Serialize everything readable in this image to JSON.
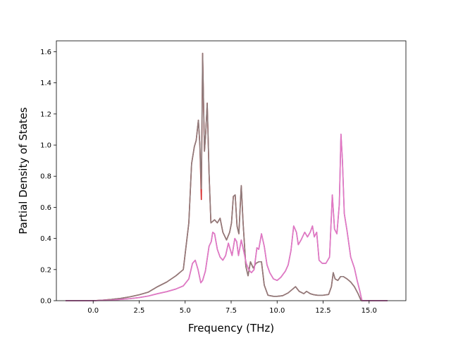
{
  "chart_data": {
    "type": "line",
    "title": "",
    "xlabel": "Frequency (THz)",
    "ylabel": "Partial Density of States",
    "xlim": [
      -2.0,
      17.0
    ],
    "ylim": [
      0.0,
      1.67
    ],
    "grid": false,
    "legend": "none",
    "x_ticks": [
      0.0,
      2.5,
      5.0,
      7.5,
      10.0,
      12.5,
      15.0
    ],
    "x_tick_labels": [
      "0.0",
      "2.5",
      "5.0",
      "7.5",
      "10.0",
      "12.5",
      "15.0"
    ],
    "y_ticks": [
      0.0,
      0.2,
      0.4,
      0.6,
      0.8,
      1.0,
      1.2,
      1.4,
      1.6
    ],
    "y_tick_labels": [
      "0.0",
      "0.2",
      "0.4",
      "0.6",
      "0.8",
      "1.0",
      "1.2",
      "1.4",
      "1.6"
    ],
    "series": [
      {
        "color": "#d62728",
        "width": 1.6,
        "points": [
          [
            -1.5,
            0
          ],
          [
            0.0,
            0
          ],
          [
            0.5,
            0.003
          ],
          [
            1.0,
            0.008
          ],
          [
            1.5,
            0.015
          ],
          [
            2.0,
            0.025
          ],
          [
            2.5,
            0.038
          ],
          [
            3.0,
            0.055
          ],
          [
            3.5,
            0.09
          ],
          [
            4.0,
            0.12
          ],
          [
            4.5,
            0.16
          ],
          [
            4.9,
            0.2
          ],
          [
            5.2,
            0.5
          ],
          [
            5.35,
            0.88
          ],
          [
            5.5,
            0.99
          ],
          [
            5.6,
            1.03
          ],
          [
            5.72,
            1.16
          ],
          [
            5.8,
            1.0
          ],
          [
            5.88,
            0.65
          ],
          [
            5.95,
            1.59
          ],
          [
            6.05,
            0.96
          ],
          [
            6.12,
            1.08
          ],
          [
            6.2,
            1.27
          ],
          [
            6.3,
            0.82
          ],
          [
            6.4,
            0.5
          ],
          [
            6.6,
            0.52
          ],
          [
            6.75,
            0.5
          ],
          [
            6.9,
            0.53
          ],
          [
            7.05,
            0.44
          ],
          [
            7.25,
            0.39
          ],
          [
            7.42,
            0.44
          ],
          [
            7.52,
            0.5
          ],
          [
            7.62,
            0.67
          ],
          [
            7.72,
            0.68
          ],
          [
            7.82,
            0.48
          ],
          [
            7.92,
            0.43
          ],
          [
            8.05,
            0.74
          ],
          [
            8.15,
            0.5
          ],
          [
            8.3,
            0.22
          ],
          [
            8.42,
            0.16
          ],
          [
            8.55,
            0.25
          ],
          [
            8.7,
            0.21
          ],
          [
            8.85,
            0.24
          ],
          [
            9.0,
            0.25
          ],
          [
            9.15,
            0.25
          ],
          [
            9.3,
            0.1
          ],
          [
            9.5,
            0.035
          ],
          [
            9.8,
            0.028
          ],
          [
            10.0,
            0.028
          ],
          [
            10.3,
            0.032
          ],
          [
            10.6,
            0.05
          ],
          [
            10.85,
            0.075
          ],
          [
            11.0,
            0.09
          ],
          [
            11.2,
            0.06
          ],
          [
            11.45,
            0.045
          ],
          [
            11.6,
            0.06
          ],
          [
            11.8,
            0.045
          ],
          [
            12.0,
            0.038
          ],
          [
            12.2,
            0.035
          ],
          [
            12.5,
            0.035
          ],
          [
            12.8,
            0.04
          ],
          [
            12.95,
            0.09
          ],
          [
            13.05,
            0.18
          ],
          [
            13.15,
            0.14
          ],
          [
            13.3,
            0.13
          ],
          [
            13.45,
            0.155
          ],
          [
            13.6,
            0.155
          ],
          [
            13.8,
            0.14
          ],
          [
            14.0,
            0.12
          ],
          [
            14.2,
            0.09
          ],
          [
            14.4,
            0.045
          ],
          [
            14.55,
            0.005
          ],
          [
            14.6,
            0
          ],
          [
            16.0,
            0
          ]
        ]
      },
      {
        "color": "#8c7b7b",
        "width": 1.6,
        "points": [
          [
            -1.5,
            0
          ],
          [
            0.0,
            0
          ],
          [
            0.5,
            0.003
          ],
          [
            1.0,
            0.008
          ],
          [
            1.5,
            0.015
          ],
          [
            2.0,
            0.025
          ],
          [
            2.5,
            0.038
          ],
          [
            3.0,
            0.055
          ],
          [
            3.5,
            0.09
          ],
          [
            4.0,
            0.12
          ],
          [
            4.5,
            0.16
          ],
          [
            4.9,
            0.2
          ],
          [
            5.2,
            0.5
          ],
          [
            5.35,
            0.88
          ],
          [
            5.5,
            0.99
          ],
          [
            5.6,
            1.03
          ],
          [
            5.72,
            1.16
          ],
          [
            5.8,
            1.0
          ],
          [
            5.88,
            0.72
          ],
          [
            5.95,
            1.59
          ],
          [
            6.05,
            0.96
          ],
          [
            6.12,
            1.08
          ],
          [
            6.2,
            1.27
          ],
          [
            6.3,
            0.82
          ],
          [
            6.4,
            0.5
          ],
          [
            6.6,
            0.52
          ],
          [
            6.75,
            0.5
          ],
          [
            6.9,
            0.53
          ],
          [
            7.05,
            0.44
          ],
          [
            7.25,
            0.39
          ],
          [
            7.42,
            0.44
          ],
          [
            7.52,
            0.5
          ],
          [
            7.62,
            0.67
          ],
          [
            7.72,
            0.68
          ],
          [
            7.82,
            0.48
          ],
          [
            7.92,
            0.43
          ],
          [
            8.05,
            0.74
          ],
          [
            8.15,
            0.5
          ],
          [
            8.3,
            0.22
          ],
          [
            8.42,
            0.16
          ],
          [
            8.55,
            0.25
          ],
          [
            8.7,
            0.21
          ],
          [
            8.85,
            0.24
          ],
          [
            9.0,
            0.25
          ],
          [
            9.15,
            0.25
          ],
          [
            9.3,
            0.1
          ],
          [
            9.5,
            0.035
          ],
          [
            9.8,
            0.028
          ],
          [
            10.0,
            0.028
          ],
          [
            10.3,
            0.032
          ],
          [
            10.6,
            0.05
          ],
          [
            10.85,
            0.075
          ],
          [
            11.0,
            0.09
          ],
          [
            11.2,
            0.06
          ],
          [
            11.45,
            0.045
          ],
          [
            11.6,
            0.06
          ],
          [
            11.8,
            0.045
          ],
          [
            12.0,
            0.038
          ],
          [
            12.2,
            0.035
          ],
          [
            12.5,
            0.035
          ],
          [
            12.8,
            0.04
          ],
          [
            12.95,
            0.09
          ],
          [
            13.05,
            0.18
          ],
          [
            13.15,
            0.14
          ],
          [
            13.3,
            0.13
          ],
          [
            13.45,
            0.155
          ],
          [
            13.6,
            0.155
          ],
          [
            13.8,
            0.14
          ],
          [
            14.0,
            0.12
          ],
          [
            14.2,
            0.09
          ],
          [
            14.4,
            0.045
          ],
          [
            14.55,
            0.005
          ],
          [
            14.6,
            0
          ],
          [
            16.0,
            0
          ]
        ]
      },
      {
        "color": "#9467bd",
        "width": 1.6,
        "points": [
          [
            -1.5,
            0
          ],
          [
            0.0,
            0
          ],
          [
            0.5,
            0.002
          ],
          [
            1.0,
            0.004
          ],
          [
            1.5,
            0.008
          ],
          [
            2.0,
            0.013
          ],
          [
            2.5,
            0.02
          ],
          [
            3.0,
            0.03
          ],
          [
            3.5,
            0.045
          ],
          [
            4.0,
            0.058
          ],
          [
            4.5,
            0.075
          ],
          [
            4.9,
            0.095
          ],
          [
            5.2,
            0.14
          ],
          [
            5.4,
            0.24
          ],
          [
            5.55,
            0.26
          ],
          [
            5.7,
            0.2
          ],
          [
            5.85,
            0.115
          ],
          [
            5.95,
            0.13
          ],
          [
            6.1,
            0.19
          ],
          [
            6.3,
            0.35
          ],
          [
            6.42,
            0.38
          ],
          [
            6.5,
            0.44
          ],
          [
            6.6,
            0.43
          ],
          [
            6.75,
            0.33
          ],
          [
            6.9,
            0.28
          ],
          [
            7.05,
            0.26
          ],
          [
            7.2,
            0.29
          ],
          [
            7.35,
            0.37
          ],
          [
            7.45,
            0.33
          ],
          [
            7.55,
            0.29
          ],
          [
            7.7,
            0.4
          ],
          [
            7.8,
            0.38
          ],
          [
            7.9,
            0.29
          ],
          [
            8.05,
            0.39
          ],
          [
            8.2,
            0.31
          ],
          [
            8.32,
            0.24
          ],
          [
            8.45,
            0.2
          ],
          [
            8.6,
            0.18
          ],
          [
            8.75,
            0.2
          ],
          [
            8.9,
            0.34
          ],
          [
            9.0,
            0.33
          ],
          [
            9.15,
            0.43
          ],
          [
            9.3,
            0.35
          ],
          [
            9.45,
            0.23
          ],
          [
            9.6,
            0.18
          ],
          [
            9.8,
            0.14
          ],
          [
            10.0,
            0.13
          ],
          [
            10.2,
            0.15
          ],
          [
            10.45,
            0.19
          ],
          [
            10.6,
            0.23
          ],
          [
            10.75,
            0.32
          ],
          [
            10.9,
            0.48
          ],
          [
            11.05,
            0.44
          ],
          [
            11.15,
            0.36
          ],
          [
            11.3,
            0.39
          ],
          [
            11.5,
            0.44
          ],
          [
            11.65,
            0.41
          ],
          [
            11.8,
            0.44
          ],
          [
            11.92,
            0.48
          ],
          [
            12.02,
            0.41
          ],
          [
            12.15,
            0.44
          ],
          [
            12.28,
            0.26
          ],
          [
            12.45,
            0.24
          ],
          [
            12.65,
            0.24
          ],
          [
            12.85,
            0.28
          ],
          [
            13.0,
            0.68
          ],
          [
            13.12,
            0.46
          ],
          [
            13.25,
            0.43
          ],
          [
            13.38,
            0.62
          ],
          [
            13.47,
            1.07
          ],
          [
            13.55,
            0.9
          ],
          [
            13.65,
            0.56
          ],
          [
            13.8,
            0.45
          ],
          [
            14.0,
            0.28
          ],
          [
            14.2,
            0.21
          ],
          [
            14.35,
            0.13
          ],
          [
            14.5,
            0.06
          ],
          [
            14.6,
            0.005
          ],
          [
            14.65,
            0
          ],
          [
            16.0,
            0
          ]
        ]
      },
      {
        "color": "#e377c2",
        "width": 1.6,
        "points": [
          [
            -1.5,
            0
          ],
          [
            0.0,
            0
          ],
          [
            0.5,
            0.002
          ],
          [
            1.0,
            0.004
          ],
          [
            1.5,
            0.008
          ],
          [
            2.0,
            0.013
          ],
          [
            2.5,
            0.02
          ],
          [
            3.0,
            0.03
          ],
          [
            3.5,
            0.045
          ],
          [
            4.0,
            0.058
          ],
          [
            4.5,
            0.075
          ],
          [
            4.9,
            0.095
          ],
          [
            5.2,
            0.14
          ],
          [
            5.4,
            0.24
          ],
          [
            5.55,
            0.26
          ],
          [
            5.7,
            0.2
          ],
          [
            5.85,
            0.115
          ],
          [
            5.95,
            0.13
          ],
          [
            6.1,
            0.19
          ],
          [
            6.3,
            0.35
          ],
          [
            6.42,
            0.38
          ],
          [
            6.5,
            0.44
          ],
          [
            6.6,
            0.43
          ],
          [
            6.75,
            0.33
          ],
          [
            6.9,
            0.28
          ],
          [
            7.05,
            0.26
          ],
          [
            7.2,
            0.29
          ],
          [
            7.35,
            0.37
          ],
          [
            7.45,
            0.33
          ],
          [
            7.55,
            0.29
          ],
          [
            7.7,
            0.4
          ],
          [
            7.8,
            0.38
          ],
          [
            7.9,
            0.29
          ],
          [
            8.05,
            0.39
          ],
          [
            8.2,
            0.31
          ],
          [
            8.32,
            0.24
          ],
          [
            8.45,
            0.2
          ],
          [
            8.6,
            0.18
          ],
          [
            8.75,
            0.2
          ],
          [
            8.9,
            0.34
          ],
          [
            9.0,
            0.33
          ],
          [
            9.15,
            0.43
          ],
          [
            9.3,
            0.35
          ],
          [
            9.45,
            0.23
          ],
          [
            9.6,
            0.18
          ],
          [
            9.8,
            0.14
          ],
          [
            10.0,
            0.13
          ],
          [
            10.2,
            0.15
          ],
          [
            10.45,
            0.19
          ],
          [
            10.6,
            0.23
          ],
          [
            10.75,
            0.32
          ],
          [
            10.9,
            0.48
          ],
          [
            11.05,
            0.44
          ],
          [
            11.15,
            0.36
          ],
          [
            11.3,
            0.39
          ],
          [
            11.5,
            0.44
          ],
          [
            11.65,
            0.41
          ],
          [
            11.8,
            0.44
          ],
          [
            11.92,
            0.48
          ],
          [
            12.02,
            0.41
          ],
          [
            12.15,
            0.44
          ],
          [
            12.28,
            0.26
          ],
          [
            12.45,
            0.24
          ],
          [
            12.65,
            0.24
          ],
          [
            12.85,
            0.28
          ],
          [
            13.0,
            0.68
          ],
          [
            13.12,
            0.46
          ],
          [
            13.25,
            0.43
          ],
          [
            13.38,
            0.62
          ],
          [
            13.47,
            1.07
          ],
          [
            13.55,
            0.9
          ],
          [
            13.65,
            0.56
          ],
          [
            13.8,
            0.45
          ],
          [
            14.0,
            0.28
          ],
          [
            14.2,
            0.21
          ],
          [
            14.35,
            0.13
          ],
          [
            14.5,
            0.06
          ],
          [
            14.6,
            0.005
          ],
          [
            14.65,
            0
          ],
          [
            16.0,
            0
          ]
        ]
      }
    ]
  }
}
